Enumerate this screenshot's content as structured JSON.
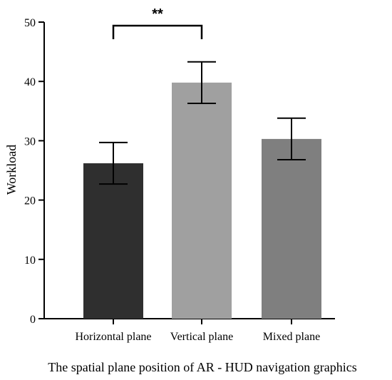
{
  "chart_data": {
    "type": "bar",
    "title": "",
    "xlabel": "The spatial plane position of AR - HUD navigation graphics",
    "ylabel": "Workload",
    "ylim": [
      0,
      50
    ],
    "yticks": [
      0,
      10,
      20,
      30,
      40,
      50
    ],
    "categories": [
      "Horizontal plane",
      "Vertical plane",
      "Mixed plane"
    ],
    "values": [
      26.2,
      39.8,
      30.3
    ],
    "error": [
      3.5,
      3.5,
      3.5
    ],
    "bar_colors": [
      "#2f2f2f",
      "#a0a0a0",
      "#7f7f7f"
    ],
    "significance": [
      {
        "from": 0,
        "to": 1,
        "label": "**"
      }
    ],
    "grid": false,
    "legend": "none"
  }
}
